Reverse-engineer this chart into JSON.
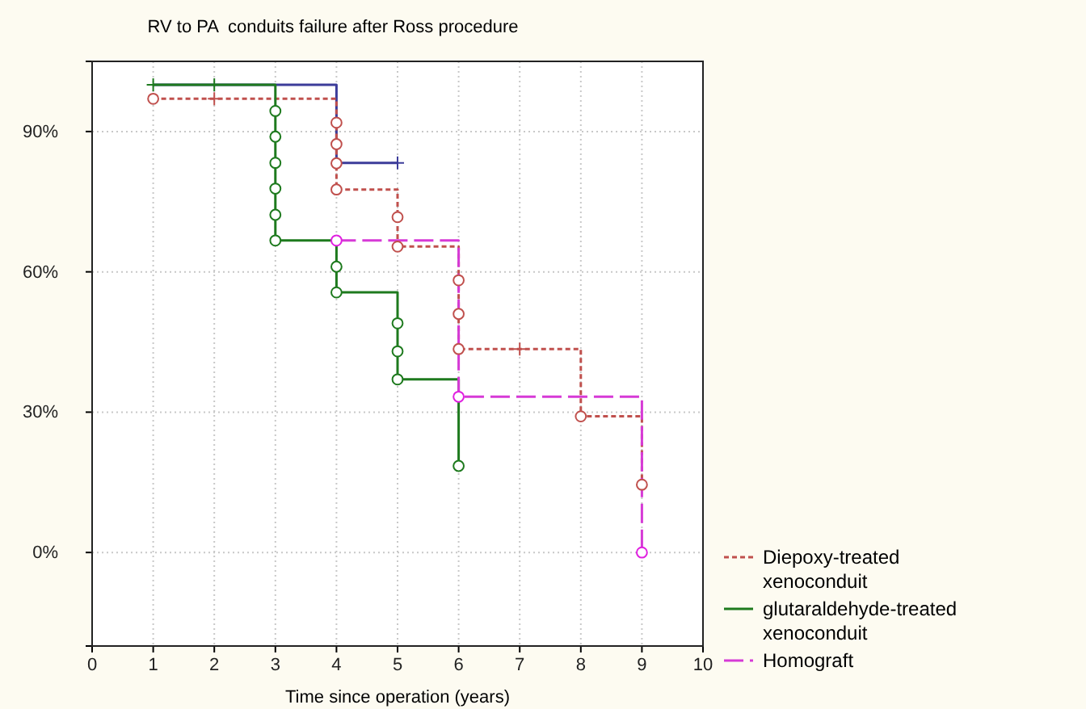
{
  "chart_data": {
    "type": "step",
    "title": "RV to PA  conduits failure after Ross procedure",
    "xlabel": "Time since operation (years)",
    "xlim": [
      0,
      10
    ],
    "xticks": [
      0,
      1,
      2,
      3,
      4,
      5,
      6,
      7,
      8,
      9,
      10
    ],
    "ylim": [
      -20,
      105
    ],
    "yticks": [
      {
        "value": 0,
        "label": "0%"
      },
      {
        "value": 30,
        "label": "30%"
      },
      {
        "value": 60,
        "label": "60%"
      },
      {
        "value": 90,
        "label": "90%"
      }
    ],
    "grid": true,
    "legend": "bottom right",
    "series": [
      {
        "color": "#3c3c9a",
        "line_style": "solid",
        "x": [
          1,
          4,
          4,
          5
        ],
        "values": [
          100,
          100,
          83.3,
          83.3
        ]
      },
      {
        "name": "Diepoxy-treated xenoconduit",
        "color": "#c0504d",
        "line_style": "dotted",
        "x": [
          1,
          4,
          4,
          5,
          5,
          6,
          6,
          8,
          8,
          9,
          9
        ],
        "values": [
          97,
          97,
          77.6,
          77.6,
          65.4,
          65.4,
          43.5,
          43.5,
          29.1,
          29.1,
          14.5
        ]
      },
      {
        "name": "glutaraldehyde-treated xenoconduit",
        "color": "#1e7a1e",
        "line_style": "solid",
        "x": [
          1,
          3,
          3,
          4,
          4,
          5,
          5,
          6,
          6
        ],
        "values": [
          100,
          100,
          66.7,
          66.7,
          55.6,
          55.6,
          37,
          37,
          18.5
        ]
      },
      {
        "name": "Homograft",
        "color": "#d63ad6",
        "line_style": "dashed",
        "x": [
          4,
          6,
          6,
          9,
          9
        ],
        "values": [
          66.7,
          66.7,
          33.3,
          33.3,
          0
        ]
      },
      {
        "type": "scatter",
        "marker": "circle",
        "color": "#1e7a1e",
        "x": [
          3,
          3,
          3,
          3,
          3,
          3,
          4,
          4,
          5,
          5,
          5,
          6
        ],
        "values": [
          94.4,
          88.9,
          83.3,
          77.8,
          72.2,
          66.7,
          61.1,
          55.6,
          49,
          43,
          37,
          18.5
        ]
      },
      {
        "type": "scatter",
        "marker": "circle",
        "color": "#c0504d",
        "x": [
          1,
          4,
          4,
          4,
          4,
          5,
          5,
          6,
          6,
          6,
          8,
          9
        ],
        "values": [
          97,
          91.9,
          87.3,
          83.2,
          77.6,
          71.7,
          65.4,
          58.2,
          51,
          43.5,
          29.1,
          14.5
        ]
      },
      {
        "type": "scatter",
        "marker": "circle",
        "color": "#e020e0",
        "x": [
          4,
          6,
          9
        ],
        "values": [
          66.7,
          33.3,
          0
        ]
      },
      {
        "type": "scatter",
        "marker": "cross",
        "color": "#1e7a1e",
        "x": [
          1,
          2
        ],
        "values": [
          100,
          100
        ]
      },
      {
        "type": "scatter",
        "marker": "cross",
        "color": "#3c3c9a",
        "x": [
          5
        ],
        "values": [
          83.3
        ]
      },
      {
        "type": "scatter",
        "marker": "cross",
        "color": "#c0504d",
        "x": [
          2,
          7
        ],
        "values": [
          97,
          43.5
        ]
      }
    ]
  }
}
